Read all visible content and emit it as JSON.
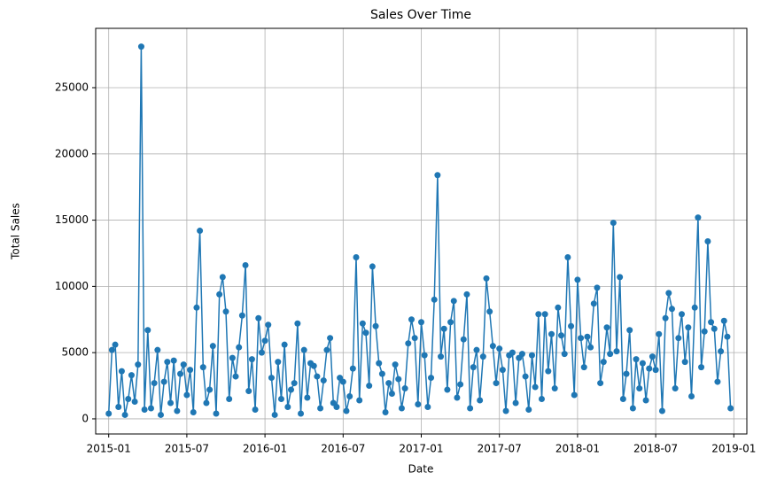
{
  "chart_data": {
    "type": "line",
    "title": "Sales Over Time",
    "x_label": "Date",
    "y_label": "Total Sales",
    "color": "#1f77b4",
    "grid": true,
    "xlim": [
      "2014-12",
      "2019-02"
    ],
    "xticks": [
      "2015-01",
      "2015-07",
      "2016-01",
      "2016-07",
      "2017-01",
      "2017-07",
      "2018-01",
      "2018-07",
      "2019-01"
    ],
    "ylim": [
      -1140,
      29480
    ],
    "yticks": [
      0,
      5000,
      10000,
      15000,
      20000,
      25000
    ],
    "x": [
      "2015-01",
      "2015-01",
      "2015-01",
      "2015-01",
      "2015-02",
      "2015-02",
      "2015-02",
      "2015-02",
      "2015-03",
      "2015-03",
      "2015-03",
      "2015-03",
      "2015-04",
      "2015-04",
      "2015-04",
      "2015-04",
      "2015-05",
      "2015-05",
      "2015-05",
      "2015-05",
      "2015-06",
      "2015-06",
      "2015-06",
      "2015-06",
      "2015-07",
      "2015-07",
      "2015-07",
      "2015-07",
      "2015-08",
      "2015-08",
      "2015-08",
      "2015-08",
      "2015-09",
      "2015-09",
      "2015-09",
      "2015-09",
      "2015-10",
      "2015-10",
      "2015-10",
      "2015-10",
      "2015-11",
      "2015-11",
      "2015-11",
      "2015-11",
      "2015-12",
      "2015-12",
      "2015-12",
      "2015-12",
      "2016-01",
      "2016-01",
      "2016-01",
      "2016-01",
      "2016-02",
      "2016-02",
      "2016-02",
      "2016-02",
      "2016-03",
      "2016-03",
      "2016-03",
      "2016-03",
      "2016-04",
      "2016-04",
      "2016-04",
      "2016-04",
      "2016-05",
      "2016-05",
      "2016-05",
      "2016-05",
      "2016-06",
      "2016-06",
      "2016-06",
      "2016-06",
      "2016-07",
      "2016-07",
      "2016-07",
      "2016-07",
      "2016-08",
      "2016-08",
      "2016-08",
      "2016-08",
      "2016-09",
      "2016-09",
      "2016-09",
      "2016-09",
      "2016-10",
      "2016-10",
      "2016-10",
      "2016-10",
      "2016-11",
      "2016-11",
      "2016-11",
      "2016-11",
      "2016-12",
      "2016-12",
      "2016-12",
      "2016-12",
      "2017-01",
      "2017-01",
      "2017-01",
      "2017-01",
      "2017-02",
      "2017-02",
      "2017-02",
      "2017-02",
      "2017-03",
      "2017-03",
      "2017-03",
      "2017-03",
      "2017-04",
      "2017-04",
      "2017-04",
      "2017-04",
      "2017-05",
      "2017-05",
      "2017-05",
      "2017-05",
      "2017-06",
      "2017-06",
      "2017-06",
      "2017-06",
      "2017-07",
      "2017-07",
      "2017-07",
      "2017-07",
      "2017-08",
      "2017-08",
      "2017-08",
      "2017-08",
      "2017-09",
      "2017-09",
      "2017-09",
      "2017-09",
      "2017-10",
      "2017-10",
      "2017-10",
      "2017-10",
      "2017-11",
      "2017-11",
      "2017-11",
      "2017-11",
      "2017-12",
      "2017-12",
      "2017-12",
      "2017-12",
      "2018-01",
      "2018-01",
      "2018-01",
      "2018-01",
      "2018-02",
      "2018-02",
      "2018-02",
      "2018-02",
      "2018-03",
      "2018-03",
      "2018-03",
      "2018-03",
      "2018-04",
      "2018-04",
      "2018-04",
      "2018-04",
      "2018-05",
      "2018-05",
      "2018-05",
      "2018-05",
      "2018-06",
      "2018-06",
      "2018-06",
      "2018-06",
      "2018-07",
      "2018-07",
      "2018-07",
      "2018-07",
      "2018-08",
      "2018-08",
      "2018-08",
      "2018-08",
      "2018-09",
      "2018-09",
      "2018-09",
      "2018-09",
      "2018-10",
      "2018-10",
      "2018-10",
      "2018-10",
      "2018-11",
      "2018-11",
      "2018-11",
      "2018-11",
      "2018-12",
      "2018-12",
      "2018-12",
      "2018-12"
    ],
    "values": [
      400,
      5200,
      5600,
      900,
      3600,
      300,
      1500,
      3300,
      1300,
      4100,
      28100,
      700,
      6700,
      800,
      2700,
      5200,
      300,
      2800,
      4300,
      1200,
      4400,
      600,
      3400,
      4100,
      1800,
      3700,
      500,
      8400,
      14200,
      3900,
      1200,
      2200,
      5500,
      400,
      9400,
      10700,
      8100,
      1500,
      4600,
      3200,
      5400,
      7800,
      11600,
      2100,
      4500,
      700,
      7600,
      5000,
      5900,
      7100,
      3100,
      300,
      4300,
      1500,
      5600,
      900,
      2200,
      2700,
      7200,
      400,
      5200,
      1600,
      4200,
      4000,
      3200,
      800,
      2900,
      5200,
      6100,
      1200,
      900,
      3100,
      2800,
      600,
      1700,
      3800,
      12200,
      1400,
      7200,
      6500,
      2500,
      11500,
      7000,
      4200,
      3400,
      500,
      2700,
      1900,
      4100,
      3000,
      800,
      2300,
      5700,
      7500,
      6100,
      1100,
      7300,
      4800,
      900,
      3100,
      9000,
      18400,
      4700,
      6800,
      2200,
      7300,
      8900,
      1600,
      2600,
      6000,
      9400,
      800,
      3900,
      5200,
      1400,
      4700,
      10600,
      8100,
      5500,
      2700,
      5300,
      3700,
      600,
      4800,
      5000,
      1200,
      4600,
      4900,
      3200,
      700,
      4800,
      2400,
      7900,
      1500,
      7900,
      3600,
      6400,
      2300,
      8400,
      6300,
      4900,
      12200,
      7000,
      1800,
      10500,
      6100,
      3900,
      6200,
      5400,
      8700,
      9900,
      2700,
      4300,
      6900,
      4900,
      14800,
      5100,
      10700,
      1500,
      3400,
      6700,
      800,
      4500,
      2300,
      4200,
      1400,
      3800,
      4700,
      3700,
      6400,
      600,
      7600,
      9500,
      8300,
      2300,
      6100,
      7900,
      4300,
      6900,
      1700,
      8400,
      15200,
      3900,
      6600,
      13400,
      7300,
      6800,
      2800,
      5100,
      7400,
      6200,
      800
    ]
  }
}
